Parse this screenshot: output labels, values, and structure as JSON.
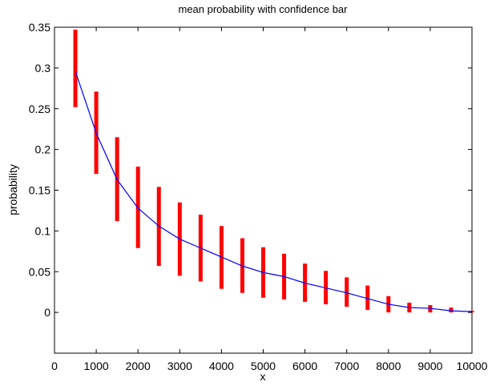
{
  "chart_data": {
    "type": "line",
    "title": "mean probability with confidence bar",
    "xlabel": "x",
    "ylabel": "probability",
    "xlim": [
      0,
      10000
    ],
    "ylim": [
      -0.05,
      0.35
    ],
    "xticks": [
      0,
      1000,
      2000,
      3000,
      4000,
      5000,
      6000,
      7000,
      8000,
      9000,
      10000
    ],
    "yticks": [
      0,
      0.05,
      0.1,
      0.15,
      0.2,
      0.25,
      0.3,
      0.35
    ],
    "xtick_labels": [
      "0",
      "1000",
      "2000",
      "3000",
      "4000",
      "5000",
      "6000",
      "7000",
      "8000",
      "9000",
      "10000"
    ],
    "ytick_labels": [
      "0",
      "0.05",
      "0.1",
      "0.15",
      "0.2",
      "0.25",
      "0.3",
      "0.35"
    ],
    "grid": false,
    "colors": {
      "mean_line": "#0000ff",
      "confidence_bar": "#ff0000",
      "axes": "#000000"
    },
    "series": [
      {
        "x": [
          500,
          1000,
          1500,
          2000,
          2500,
          3000,
          3500,
          4000,
          4500,
          5000,
          5500,
          6000,
          6500,
          7000,
          7500,
          8000,
          8500,
          9000,
          9500,
          10000
        ],
        "values": [
          0.296,
          0.22,
          0.163,
          0.128,
          0.106,
          0.09,
          0.079,
          0.068,
          0.057,
          0.049,
          0.044,
          0.036,
          0.03,
          0.024,
          0.017,
          0.01,
          0.006,
          0.005,
          0.002,
          0.001
        ],
        "lower": [
          0.252,
          0.17,
          0.112,
          0.079,
          0.057,
          0.045,
          0.038,
          0.029,
          0.024,
          0.018,
          0.016,
          0.013,
          0.01,
          0.007,
          0.003,
          0.0,
          0.0,
          0.0,
          0.0,
          0.0
        ],
        "upper": [
          0.347,
          0.271,
          0.215,
          0.179,
          0.154,
          0.135,
          0.12,
          0.106,
          0.091,
          0.08,
          0.072,
          0.06,
          0.051,
          0.043,
          0.033,
          0.02,
          0.012,
          0.009,
          0.006,
          0.002
        ]
      }
    ]
  }
}
